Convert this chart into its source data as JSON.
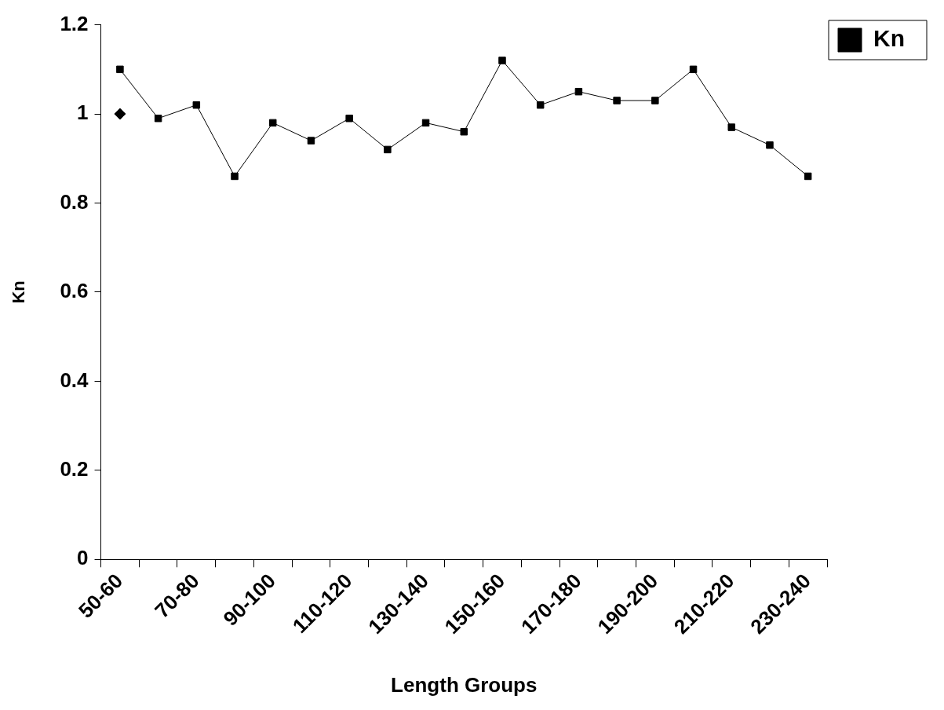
{
  "chart_data": {
    "type": "line",
    "xlabel": "Length Groups",
    "ylabel": "Kn",
    "categories": [
      "50-60",
      null,
      "70-80",
      null,
      "90-100",
      null,
      "110-120",
      null,
      "130-140",
      null,
      "150-160",
      null,
      "170-180",
      null,
      "190-200",
      null,
      "210-220",
      null,
      "230-240"
    ],
    "series": [
      {
        "name": "Kn",
        "color": "#000000",
        "marker": "square",
        "values": [
          1.1,
          0.99,
          1.02,
          0.86,
          0.98,
          0.94,
          0.99,
          0.92,
          0.98,
          0.96,
          1.12,
          1.02,
          1.05,
          1.03,
          1.03,
          1.1,
          0.97,
          0.93,
          0.86
        ]
      },
      {
        "type": "scatter",
        "color": "#000000",
        "marker": "diamond",
        "values": [
          1.0,
          null,
          null,
          null,
          null,
          null,
          null,
          null,
          null,
          null,
          null,
          null,
          null,
          null,
          null,
          null,
          null,
          null,
          null
        ]
      }
    ],
    "ylim": [
      0,
      1.2
    ],
    "yticks": [
      0,
      0.2,
      0.4,
      0.6,
      0.8,
      1,
      1.2
    ],
    "grid": false,
    "legend": "top right"
  }
}
